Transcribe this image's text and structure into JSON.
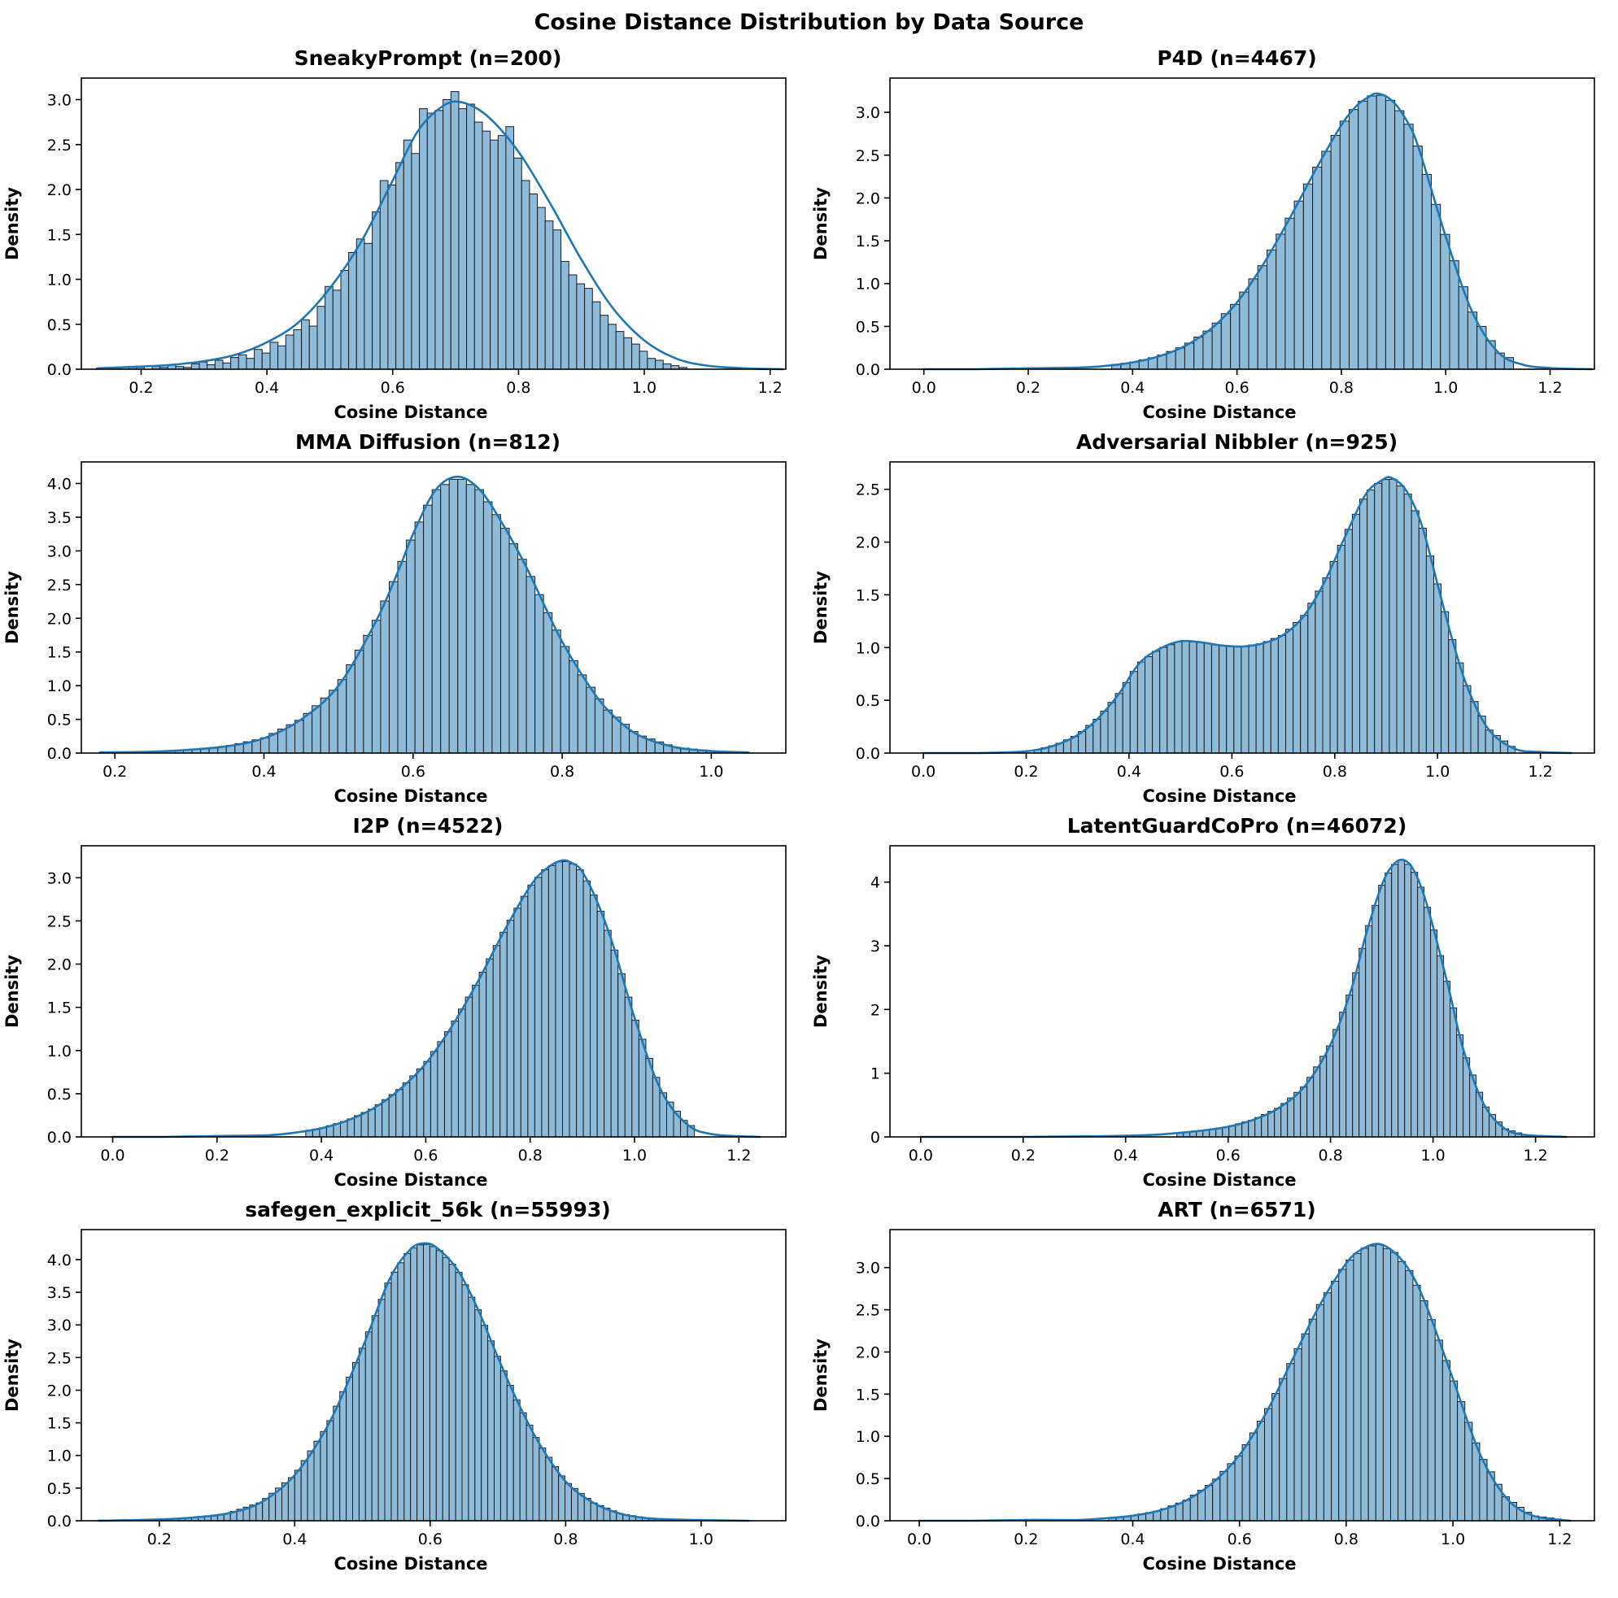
{
  "figure": {
    "title": "Cosine Distance Distribution by Data Source"
  },
  "colors": {
    "bar_fill": "#8fbbd9",
    "bar_edge": "#141d26",
    "kde_line": "#1f77b4",
    "axes": "#000000",
    "text": "#000000"
  },
  "chart_data": [
    {
      "type": "histogram+kde",
      "title": "SneakyPrompt (n=200)",
      "source": "SneakyPrompt",
      "n": 200,
      "xlabel": "Cosine Distance",
      "ylabel": "Density",
      "xlim": [
        0.105,
        1.225
      ],
      "ylim": [
        0,
        3.24
      ],
      "xticks": [
        "0.2",
        "0.4",
        "0.6",
        "0.8",
        "1.0",
        "1.2"
      ],
      "yticks": [
        "0.0",
        "0.5",
        "1.0",
        "1.5",
        "2.0",
        "2.5",
        "3.0"
      ],
      "grid": false,
      "legend": false,
      "bars": {
        "start": 0.155,
        "width": 0.0125,
        "count": 73,
        "heights": [
          0.02,
          0,
          0.03,
          0.02,
          0,
          0.03,
          0.02,
          0.05,
          0.03,
          0.02,
          0.06,
          0.08,
          0.05,
          0.1,
          0.07,
          0.13,
          0.16,
          0.12,
          0.22,
          0.18,
          0.3,
          0.26,
          0.38,
          0.44,
          0.55,
          0.48,
          0.7,
          0.92,
          0.88,
          1.1,
          1.3,
          1.45,
          1.4,
          1.75,
          2.1,
          2.05,
          2.3,
          2.55,
          2.4,
          2.9,
          2.85,
          2.88,
          3.0,
          3.09,
          2.9,
          2.95,
          2.75,
          2.65,
          2.55,
          2.6,
          2.7,
          2.35,
          2.1,
          1.95,
          1.8,
          1.65,
          1.55,
          1.2,
          1.05,
          0.95,
          0.9,
          0.75,
          0.6,
          0.5,
          0.42,
          0.35,
          0.28,
          0.2,
          0.12,
          0.1,
          0.06,
          0.04,
          0.02
        ]
      },
      "kde": {
        "x": [
          0.13,
          0.2,
          0.25,
          0.3,
          0.35,
          0.4,
          0.45,
          0.5,
          0.55,
          0.6,
          0.64,
          0.68,
          0.71,
          0.75,
          0.8,
          0.85,
          0.9,
          0.95,
          1.0,
          1.05,
          1.1,
          1.16,
          1.22
        ],
        "y": [
          0.01,
          0.03,
          0.05,
          0.09,
          0.16,
          0.3,
          0.52,
          0.9,
          1.42,
          2.1,
          2.65,
          2.93,
          2.97,
          2.82,
          2.42,
          1.85,
          1.22,
          0.68,
          0.32,
          0.12,
          0.04,
          0.01,
          0.0
        ]
      }
    },
    {
      "type": "histogram+kde",
      "title": "P4D (n=4467)",
      "source": "P4D",
      "n": 4467,
      "xlabel": "Cosine Distance",
      "ylabel": "Density",
      "xlim": [
        -0.065,
        1.285
      ],
      "ylim": [
        0,
        3.4
      ],
      "xticks": [
        "0.0",
        "0.2",
        "0.4",
        "0.6",
        "0.8",
        "1.0",
        "1.2"
      ],
      "yticks": [
        "0.0",
        "0.5",
        "1.0",
        "1.5",
        "2.0",
        "2.5",
        "3.0"
      ],
      "grid": false,
      "legend": false,
      "bars": {
        "start": 0.36,
        "width": 0.0175,
        "count": 44
      },
      "kde": {
        "x": [
          0.0,
          0.1,
          0.2,
          0.3,
          0.35,
          0.4,
          0.45,
          0.5,
          0.55,
          0.6,
          0.65,
          0.7,
          0.75,
          0.8,
          0.83,
          0.85,
          0.87,
          0.9,
          0.93,
          0.95,
          1.0,
          1.05,
          1.1,
          1.15,
          1.21,
          1.28
        ],
        "y": [
          0.0,
          0.0,
          0.01,
          0.02,
          0.04,
          0.08,
          0.15,
          0.27,
          0.47,
          0.78,
          1.22,
          1.75,
          2.32,
          2.85,
          3.08,
          3.17,
          3.22,
          3.12,
          2.85,
          2.55,
          1.55,
          0.68,
          0.2,
          0.05,
          0.01,
          0.0
        ]
      }
    },
    {
      "type": "histogram+kde",
      "title": "MMA Diffusion (n=812)",
      "source": "MMA Diffusion",
      "n": 812,
      "xlabel": "Cosine Distance",
      "ylabel": "Density",
      "xlim": [
        0.155,
        1.1
      ],
      "ylim": [
        0,
        4.32
      ],
      "xticks": [
        "0.2",
        "0.4",
        "0.6",
        "0.8",
        "1.0"
      ],
      "yticks": [
        "0.0",
        "0.5",
        "1.0",
        "1.5",
        "2.0",
        "2.5",
        "3.0",
        "3.5",
        "4.0"
      ],
      "grid": false,
      "legend": false,
      "bars": {
        "start": 0.2,
        "width": 0.0115,
        "count": 74
      },
      "kde": {
        "x": [
          0.18,
          0.25,
          0.3,
          0.35,
          0.4,
          0.45,
          0.5,
          0.55,
          0.58,
          0.6,
          0.63,
          0.66,
          0.69,
          0.72,
          0.75,
          0.78,
          0.8,
          0.83,
          0.86,
          0.9,
          0.95,
          1.0,
          1.05
        ],
        "y": [
          0.01,
          0.02,
          0.05,
          0.1,
          0.22,
          0.5,
          1.0,
          1.95,
          2.7,
          3.25,
          3.9,
          4.1,
          3.9,
          3.4,
          2.8,
          2.1,
          1.65,
          1.1,
          0.65,
          0.28,
          0.09,
          0.03,
          0.01
        ]
      }
    },
    {
      "type": "histogram+kde",
      "title": "Adversarial Nibbler (n=925)",
      "source": "Adversarial Nibbler",
      "n": 925,
      "xlabel": "Cosine Distance",
      "ylabel": "Density",
      "xlim": [
        -0.065,
        1.305
      ],
      "ylim": [
        0,
        2.76
      ],
      "xticks": [
        "0.0",
        "0.2",
        "0.4",
        "0.6",
        "0.8",
        "1.0",
        "1.2"
      ],
      "yticks": [
        "0.0",
        "0.5",
        "1.0",
        "1.5",
        "2.0",
        "2.5"
      ],
      "grid": false,
      "legend": false,
      "bars": {
        "start": 0.215,
        "width": 0.0144,
        "count": 65
      },
      "kde": {
        "x": [
          0.0,
          0.1,
          0.18,
          0.22,
          0.26,
          0.3,
          0.34,
          0.38,
          0.42,
          0.46,
          0.5,
          0.54,
          0.58,
          0.62,
          0.66,
          0.7,
          0.74,
          0.78,
          0.82,
          0.86,
          0.89,
          0.91,
          0.94,
          0.97,
          1.0,
          1.03,
          1.06,
          1.1,
          1.15,
          1.2,
          1.26
        ],
        "y": [
          0.0,
          0.0,
          0.01,
          0.03,
          0.08,
          0.17,
          0.33,
          0.56,
          0.85,
          0.99,
          1.06,
          1.05,
          1.02,
          1.01,
          1.04,
          1.12,
          1.3,
          1.62,
          2.05,
          2.45,
          2.58,
          2.61,
          2.48,
          2.15,
          1.6,
          1.05,
          0.6,
          0.22,
          0.04,
          0.01,
          0.0
        ]
      }
    },
    {
      "type": "histogram+kde",
      "title": "I2P (n=4522)",
      "source": "I2P",
      "n": 4522,
      "xlabel": "Cosine Distance",
      "ylabel": "Density",
      "xlim": [
        -0.06,
        1.29
      ],
      "ylim": [
        0,
        3.37
      ],
      "xticks": [
        "0.0",
        "0.2",
        "0.4",
        "0.6",
        "0.8",
        "1.0",
        "1.2"
      ],
      "yticks": [
        "0.0",
        "0.5",
        "1.0",
        "1.5",
        "2.0",
        "2.5",
        "3.0"
      ],
      "grid": false,
      "legend": false,
      "bars": {
        "start": 0.37,
        "width": 0.0133,
        "count": 56
      },
      "kde": {
        "x": [
          0.0,
          0.1,
          0.2,
          0.3,
          0.35,
          0.4,
          0.45,
          0.5,
          0.55,
          0.6,
          0.65,
          0.7,
          0.75,
          0.8,
          0.83,
          0.86,
          0.88,
          0.9,
          0.93,
          0.96,
          1.0,
          1.05,
          1.1,
          1.15,
          1.24
        ],
        "y": [
          0.0,
          0.0,
          0.01,
          0.02,
          0.05,
          0.1,
          0.19,
          0.33,
          0.55,
          0.85,
          1.28,
          1.8,
          2.38,
          2.9,
          3.1,
          3.2,
          3.17,
          3.07,
          2.7,
          2.2,
          1.38,
          0.55,
          0.15,
          0.03,
          0.0
        ]
      }
    },
    {
      "type": "histogram+kde",
      "title": "LatentGuardCoPro (n=46072)",
      "source": "LatentGuardCoPro",
      "n": 46072,
      "xlabel": "Cosine Distance",
      "ylabel": "Density",
      "xlim": [
        -0.06,
        1.315
      ],
      "ylim": [
        0,
        4.57
      ],
      "xticks": [
        "0.0",
        "0.2",
        "0.4",
        "0.6",
        "0.8",
        "1.0",
        "1.2"
      ],
      "yticks": [
        "0",
        "1",
        "2",
        "3",
        "4"
      ],
      "grid": false,
      "legend": false,
      "bars": {
        "start": 0.5,
        "width": 0.0127,
        "count": 56
      },
      "kde": {
        "x": [
          0.0,
          0.2,
          0.35,
          0.45,
          0.5,
          0.55,
          0.6,
          0.65,
          0.7,
          0.75,
          0.8,
          0.84,
          0.87,
          0.9,
          0.92,
          0.94,
          0.96,
          0.98,
          1.0,
          1.03,
          1.06,
          1.1,
          1.14,
          1.18,
          1.26
        ],
        "y": [
          0.0,
          0.0,
          0.01,
          0.03,
          0.06,
          0.1,
          0.16,
          0.27,
          0.46,
          0.8,
          1.45,
          2.3,
          3.2,
          3.95,
          4.25,
          4.35,
          4.22,
          3.85,
          3.3,
          2.35,
          1.35,
          0.5,
          0.13,
          0.03,
          0.0
        ]
      }
    },
    {
      "type": "histogram+kde",
      "title": "safegen_explicit_56k (n=55993)",
      "source": "safegen_explicit_56k",
      "n": 55993,
      "xlabel": "Cosine Distance",
      "ylabel": "Density",
      "xlim": [
        0.085,
        1.125
      ],
      "ylim": [
        0,
        4.46
      ],
      "xticks": [
        "0.2",
        "0.4",
        "0.6",
        "0.8",
        "1.0"
      ],
      "yticks": [
        "0.0",
        "0.5",
        "1.0",
        "1.5",
        "2.0",
        "2.5",
        "3.0",
        "3.5",
        "4.0"
      ],
      "grid": false,
      "legend": false,
      "bars": {
        "start": 0.115,
        "width": 0.0095,
        "count": 100
      },
      "kde": {
        "x": [
          0.11,
          0.2,
          0.25,
          0.3,
          0.35,
          0.4,
          0.45,
          0.5,
          0.54,
          0.57,
          0.59,
          0.61,
          0.64,
          0.67,
          0.7,
          0.73,
          0.76,
          0.8,
          0.84,
          0.88,
          0.92,
          0.96,
          1.0,
          1.07
        ],
        "y": [
          0.0,
          0.02,
          0.05,
          0.11,
          0.28,
          0.7,
          1.48,
          2.65,
          3.7,
          4.15,
          4.25,
          4.18,
          3.85,
          3.25,
          2.5,
          1.8,
          1.2,
          0.6,
          0.28,
          0.11,
          0.04,
          0.02,
          0.01,
          0.0
        ]
      }
    },
    {
      "type": "histogram+kde",
      "title": "ART (n=6571)",
      "source": "ART",
      "n": 6571,
      "xlabel": "Cosine Distance",
      "ylabel": "Density",
      "xlim": [
        -0.055,
        1.265
      ],
      "ylim": [
        0,
        3.45
      ],
      "xticks": [
        "0.0",
        "0.2",
        "0.4",
        "0.6",
        "0.8",
        "1.0",
        "1.2"
      ],
      "yticks": [
        "0.0",
        "0.5",
        "1.0",
        "1.5",
        "2.0",
        "2.5",
        "3.0"
      ],
      "grid": false,
      "legend": false,
      "bars": {
        "start": 0.355,
        "width": 0.0139,
        "count": 62
      },
      "kde": {
        "x": [
          0.0,
          0.1,
          0.2,
          0.3,
          0.35,
          0.4,
          0.45,
          0.5,
          0.55,
          0.6,
          0.65,
          0.7,
          0.75,
          0.8,
          0.83,
          0.86,
          0.89,
          0.92,
          0.95,
          1.0,
          1.05,
          1.1,
          1.15,
          1.22
        ],
        "y": [
          0.0,
          0.0,
          0.01,
          0.01,
          0.03,
          0.06,
          0.12,
          0.24,
          0.45,
          0.78,
          1.28,
          1.92,
          2.55,
          3.05,
          3.22,
          3.28,
          3.18,
          2.95,
          2.55,
          1.68,
          0.8,
          0.27,
          0.06,
          0.0
        ]
      }
    }
  ]
}
